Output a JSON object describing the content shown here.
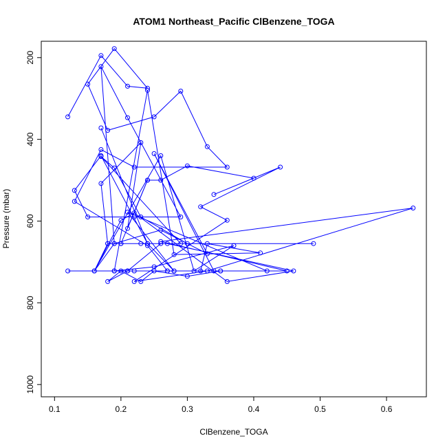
{
  "chart_data": {
    "type": "line",
    "title": "ATOM1 Northeast_Pacific ClBenzene_TOGA",
    "xlabel": "ClBenzene_TOGA",
    "ylabel": "Pressure (mbar)",
    "xlim": [
      0.08,
      0.66
    ],
    "ylim": [
      1030,
      160
    ],
    "y_inverted": true,
    "xticks": [
      0.1,
      0.2,
      0.3,
      0.4,
      0.5,
      0.6
    ],
    "xtick_labels": [
      "0.1",
      "0.2",
      "0.3",
      "0.4",
      "0.5",
      "0.6"
    ],
    "yticks": [
      200,
      400,
      600,
      800,
      1000
    ],
    "ytick_labels": [
      "200",
      "400",
      "600",
      "800",
      "1000"
    ],
    "grid": false,
    "legend": "none",
    "colors": {
      "series": "#0000ff",
      "axis": "#000000",
      "background": "#ffffff"
    },
    "series": [
      {
        "marker": "open-circle",
        "x": [
          0.12,
          0.17,
          0.21,
          0.24,
          0.19,
          0.15,
          0.18,
          0.25,
          0.29,
          0.33,
          0.36,
          0.22,
          0.17,
          0.13,
          0.24,
          0.27,
          0.21,
          0.18,
          0.2,
          0.23,
          0.25,
          0.3,
          0.35,
          0.28,
          0.24,
          0.17,
          0.13,
          0.15,
          0.22,
          0.29,
          0.21,
          0.17,
          0.19,
          0.16,
          0.26,
          0.31,
          0.37,
          0.25,
          0.19,
          0.12,
          0.42,
          0.21,
          0.28,
          0.34,
          0.25,
          0.33,
          0.26,
          0.19,
          0.18,
          0.17,
          0.23,
          0.21,
          0.24,
          0.26,
          0.3,
          0.4,
          0.34,
          0.44,
          0.32,
          0.36,
          0.22,
          0.33,
          0.64,
          0.26,
          0.45,
          0.16,
          0.2,
          0.22,
          0.36,
          0.46,
          0.27,
          0.23,
          0.49,
          0.18,
          0.16,
          0.19,
          0.27,
          0.32,
          0.33,
          0.41,
          0.28,
          0.24,
          0.19,
          0.22,
          0.35,
          0.21,
          0.26,
          0.3,
          0.23,
          0.19,
          0.17,
          0.29,
          0.2,
          0.24,
          0.2,
          0.24,
          0.17
        ],
        "y": [
          345,
          195,
          270,
          275,
          178,
          265,
          378,
          345,
          282,
          418,
          468,
          468,
          425,
          552,
          660,
          722,
          722,
          748,
          722,
          748,
          722,
          735,
          722,
          722,
          655,
          440,
          525,
          590,
          590,
          590,
          347,
          222,
          655,
          722,
          440,
          722,
          660,
          712,
          722,
          722,
          722,
          578,
          722,
          722,
          435,
          680,
          622,
          655,
          655,
          508,
          408,
          618,
          500,
          500,
          465,
          495,
          535,
          468,
          565,
          598,
          748,
          722,
          568,
          650,
          722,
          722,
          598,
          580,
          748,
          722,
          655,
          655,
          655,
          655,
          722,
          722,
          722,
          722,
          655,
          678,
          682,
          280,
          722,
          722,
          722,
          722,
          655,
          655,
          590,
          470,
          442,
          655,
          655,
          500,
          655,
          655,
          372
        ]
      }
    ]
  }
}
